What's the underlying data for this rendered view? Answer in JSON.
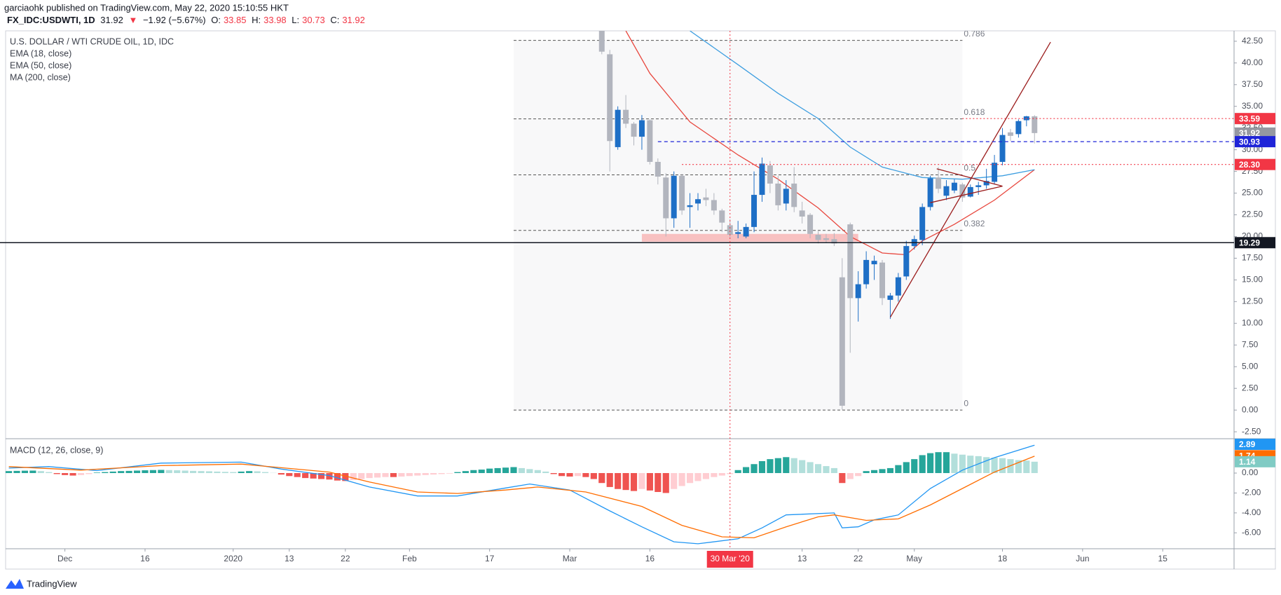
{
  "header": {
    "author_line": "garciaohk published on TradingView.com, May 22, 2020 15:10:55 HKT",
    "symbol": "FX_IDC:USDWTI, 1D",
    "last": "31.92",
    "arrow": "▼",
    "change": "−1.92 (−5.67%)",
    "o_label": "O:",
    "o": "33.85",
    "h_label": "H:",
    "h": "33.98",
    "l_label": "L:",
    "l": "30.73",
    "c_label": "C:",
    "c": "31.92"
  },
  "footer": {
    "brand": "TradingView"
  },
  "chart_data": [
    {
      "type": "candlestick",
      "title": "U.S. DOLLAR / WTI CRUDE OIL, 1D, IDC",
      "legend": [
        "EMA (18, close)",
        "EMA (50, close)",
        "MA (200, close)"
      ],
      "xlim": [
        -70.4,
        82.9
      ],
      "ylim": [
        -3.3,
        43.7
      ],
      "xticks": [
        {
          "value": -63,
          "label": "Dec"
        },
        {
          "value": -53,
          "label": "16"
        },
        {
          "value": -42,
          "label": "2020"
        },
        {
          "value": -35,
          "label": "13"
        },
        {
          "value": -28,
          "label": "22"
        },
        {
          "value": -20,
          "label": "Feb"
        },
        {
          "value": -10,
          "label": "17"
        },
        {
          "value": 0,
          "label": "Mar"
        },
        {
          "value": 10,
          "label": "16"
        },
        {
          "value": 29,
          "label": "13"
        },
        {
          "value": 36,
          "label": "22"
        },
        {
          "value": 43,
          "label": "May"
        },
        {
          "value": 54,
          "label": "18"
        },
        {
          "value": 64,
          "label": "Jun"
        },
        {
          "value": 74,
          "label": "15"
        }
      ],
      "yticks": [
        {
          "value": 42.5,
          "label": "42.50"
        },
        {
          "value": 40,
          "label": "40.00"
        },
        {
          "value": 37.5,
          "label": "37.50"
        },
        {
          "value": 35,
          "label": "35.00"
        },
        {
          "value": 32.5,
          "label": "32.50"
        },
        {
          "value": 30,
          "label": "30.00"
        },
        {
          "value": 27.5,
          "label": "27.50"
        },
        {
          "value": 25,
          "label": "25.00"
        },
        {
          "value": 22.5,
          "label": "22.50"
        },
        {
          "value": 20,
          "label": "20.00"
        },
        {
          "value": 17.5,
          "label": "17.50"
        },
        {
          "value": 15,
          "label": "15.00"
        },
        {
          "value": 12.5,
          "label": "12.50"
        },
        {
          "value": 10,
          "label": "10.00"
        },
        {
          "value": 7.5,
          "label": "7.50"
        },
        {
          "value": 5,
          "label": "5.00"
        },
        {
          "value": 2.5,
          "label": "2.50"
        },
        {
          "value": 0,
          "label": "0.00"
        },
        {
          "value": -2.5,
          "label": "-2.50"
        }
      ],
      "up_color": "#1e6fc6",
      "down_color": "#b2b5be",
      "x": [
        4,
        5,
        6,
        7,
        8,
        9,
        10,
        11,
        12,
        13,
        14,
        15,
        16,
        17,
        18,
        19,
        20,
        21,
        22,
        23,
        24,
        25,
        26,
        27,
        28,
        29,
        30,
        31,
        32,
        33,
        34,
        35,
        36,
        37,
        38,
        39,
        40,
        41,
        42,
        43,
        44,
        45,
        46,
        47,
        48,
        49,
        50,
        51,
        52,
        53,
        54,
        55,
        56,
        57,
        58
      ],
      "open": [
        46,
        41,
        30.3,
        34.6,
        33,
        31.5,
        33.4,
        28.6,
        26.8,
        22.1,
        27,
        23.4,
        23.8,
        24.5,
        24.2,
        23,
        21.3,
        20.3,
        20,
        21.1,
        24.8,
        28.2,
        26.1,
        23.8,
        26.1,
        23,
        22.5,
        20.2,
        19.8,
        19.7,
        15.3,
        21.4,
        12.9,
        14.5,
        16.8,
        17,
        12.7,
        13.2,
        15.4,
        18.9,
        19.6,
        23.4,
        26.8,
        24.7,
        25.3,
        26,
        24.6,
        25.7,
        25.9,
        26.3,
        28.6,
        32,
        31.8,
        33.4,
        33.85
      ],
      "high": [
        46.5,
        41.5,
        35,
        36.3,
        33.2,
        34,
        33.5,
        29,
        27.3,
        27.5,
        27.2,
        25,
        25,
        25.5,
        25,
        23.2,
        22,
        21.8,
        21.5,
        27.5,
        29.1,
        28.7,
        27,
        26.5,
        28,
        24,
        22.7,
        20.6,
        20.3,
        20.4,
        17.5,
        21.6,
        16,
        18.3,
        17.8,
        17.3,
        13.5,
        15.8,
        19.5,
        20.1,
        23.8,
        27,
        28,
        26.5,
        26.6,
        26.2,
        26,
        26.3,
        27.8,
        29.4,
        32.5,
        32.4,
        33.5,
        33.9,
        33.98
      ],
      "low": [
        41,
        27.5,
        30,
        32.5,
        30.5,
        30,
        28.3,
        26,
        20,
        21,
        22.5,
        21,
        23,
        23.5,
        22.5,
        20.5,
        19.8,
        19.8,
        19.8,
        20.5,
        24,
        25,
        23,
        23,
        22.8,
        21.5,
        19.8,
        19.2,
        19.3,
        18.9,
        0.05,
        6.6,
        10.2,
        14,
        15,
        12.1,
        10.5,
        12.5,
        15,
        18.5,
        19,
        23,
        25,
        24.2,
        25,
        24,
        24.5,
        24.8,
        25.5,
        26,
        28.2,
        31,
        31.4,
        32.7,
        30.73
      ],
      "close": [
        41.3,
        31,
        34.6,
        33,
        31.5,
        33.4,
        28.6,
        26.9,
        22.1,
        27,
        23,
        23.6,
        24.3,
        24.2,
        23,
        21.6,
        20.2,
        20.5,
        21.1,
        24.8,
        28.4,
        26.1,
        23.6,
        25.5,
        23.4,
        22.3,
        20.3,
        19.6,
        19.6,
        19.2,
        0.5,
        12.9,
        14.5,
        17.3,
        17.2,
        12.9,
        13.2,
        15.3,
        18.9,
        19.7,
        23.4,
        26.7,
        25.5,
        25.8,
        26.2,
        24.5,
        25.7,
        25.9,
        26.4,
        28.5,
        31.7,
        31.6,
        33.3,
        33.85,
        31.92
      ],
      "series": [
        {
          "color": "#e8473e",
          "x": [
            7,
            10,
            15,
            21,
            26,
            31,
            35,
            39,
            42,
            44,
            48,
            53,
            58
          ],
          "values": [
            43.7,
            38.8,
            33.2,
            29.4,
            26.6,
            23.3,
            20,
            18.1,
            17.9,
            19.5,
            21.4,
            24.2,
            27.7
          ]
        },
        {
          "color": "#3d9ee0",
          "x": [
            15,
            21,
            26,
            31,
            35,
            39,
            44,
            49,
            54,
            58
          ],
          "values": [
            43.7,
            39.8,
            36.5,
            33.6,
            30.3,
            28,
            26.8,
            26.6,
            27,
            27.7
          ]
        }
      ],
      "fib": {
        "ratios": [
          0.786,
          0.618,
          0.5,
          0.382,
          0
        ],
        "prices": [
          42.6,
          33.55,
          27.1,
          20.7,
          0
        ],
        "x": [
          -7,
          49
        ]
      },
      "hlines": [
        {
          "value": 33.59,
          "color": "#f23645",
          "style": "dotted",
          "from": 49
        },
        {
          "value": 30.93,
          "color": "#1f24d8",
          "style": "dashed",
          "from": 11
        },
        {
          "value": 28.3,
          "color": "#f23645",
          "style": "dotted",
          "from": 14
        },
        {
          "value": 19.29,
          "color": "#131722",
          "style": "solid"
        }
      ],
      "price_labels": [
        {
          "value": 33.59,
          "color": "#f23645"
        },
        {
          "value": 31.92,
          "color": "#9598a1"
        },
        {
          "value": 30.93,
          "color": "#1f24d8"
        },
        {
          "value": 28.3,
          "label": "28.30",
          "color": "#f23645"
        },
        {
          "value": 19.29,
          "color": "#131722"
        }
      ],
      "zone": {
        "x": [
          9,
          36
        ],
        "y": [
          19.4,
          20.3
        ],
        "color": "#f7b3b3"
      },
      "trendlines": {
        "color": "#9b1c1c",
        "lines": [
          [
            [
              40,
              10.7
            ],
            [
              60,
              42.4
            ]
          ],
          [
            [
              45.8,
              27.8
            ],
            [
              54,
              25.8
            ]
          ],
          [
            [
              45,
              23.9
            ],
            [
              54,
              25.8
            ]
          ]
        ]
      },
      "crosshair": {
        "x": 20,
        "label": "30 Mar '20",
        "color": "#f23645"
      }
    },
    {
      "type": "macd",
      "title": "MACD (12, 26, close, 9)",
      "xlim": [
        -70.4,
        82.9
      ],
      "ylim": [
        -7.6,
        3.45
      ],
      "yticks": [
        {
          "value": 0,
          "label": "0.00"
        },
        {
          "value": -2,
          "label": "-2.00"
        },
        {
          "value": -4,
          "label": "-4.00"
        },
        {
          "value": -6,
          "label": "-6.00"
        }
      ],
      "colors": {
        "pos_up": "#26a69a",
        "pos_down": "#b2dfdb",
        "neg_down": "#ef5350",
        "neg_up": "#ffcdd2"
      },
      "histogram": {
        "x": [
          -70,
          -69,
          -68,
          -67,
          -66,
          -65,
          -64,
          -63,
          -62,
          -61,
          -60,
          -59,
          -58,
          -57,
          -56,
          -55,
          -54,
          -53,
          -52,
          -51,
          -50,
          -49,
          -48,
          -47,
          -46,
          -45,
          -44,
          -43,
          -42,
          -41,
          -40,
          -39,
          -38,
          -37,
          -36,
          -35,
          -34,
          -33,
          -32,
          -31,
          -30,
          -29,
          -28,
          -27,
          -26,
          -25,
          -24,
          -23,
          -22,
          -21,
          -20,
          -19,
          -18,
          -17,
          -16,
          -15,
          -14,
          -13,
          -12,
          -11,
          -10,
          -9,
          -8,
          -7,
          -6,
          -5,
          -4,
          -3,
          -2,
          -1,
          0,
          1,
          2,
          3,
          4,
          5,
          6,
          7,
          8,
          9,
          10,
          11,
          12,
          13,
          14,
          15,
          16,
          17,
          18,
          19,
          20,
          21,
          22,
          23,
          24,
          25,
          26,
          27,
          28,
          29,
          30,
          31,
          32,
          33,
          34,
          35,
          36,
          37,
          38,
          39,
          40,
          41,
          42,
          43,
          44,
          45,
          46,
          47,
          48,
          49,
          50,
          51,
          52,
          53,
          54,
          55,
          56,
          57,
          58
        ],
        "values": [
          0.2,
          0.22,
          0.24,
          0.25,
          0.2,
          0.1,
          -0.1,
          -0.2,
          -0.25,
          -0.2,
          -0.1,
          0.05,
          0.1,
          0.15,
          0.2,
          0.22,
          0.25,
          0.28,
          0.3,
          0.32,
          0.3,
          0.28,
          0.25,
          0.22,
          0.2,
          0.18,
          0.15,
          0.12,
          0.1,
          0.15,
          0.2,
          0.18,
          0.1,
          0.02,
          -0.15,
          -0.3,
          -0.4,
          -0.5,
          -0.55,
          -0.6,
          -0.65,
          -0.75,
          -0.8,
          -0.7,
          -0.6,
          -0.5,
          -0.45,
          -0.4,
          -0.4,
          -0.35,
          -0.3,
          -0.25,
          -0.2,
          -0.15,
          -0.1,
          -0.05,
          0.1,
          0.2,
          0.3,
          0.35,
          0.45,
          0.5,
          0.55,
          0.6,
          0.5,
          0.4,
          0.3,
          0.15,
          -0.1,
          -0.3,
          -0.35,
          -0.3,
          -0.4,
          -0.6,
          -1.0,
          -1.4,
          -1.6,
          -1.7,
          -1.8,
          -1.6,
          -1.75,
          -1.9,
          -2.0,
          -1.6,
          -1.3,
          -1.0,
          -0.8,
          -0.6,
          -0.4,
          -0.25,
          -0.1,
          0.3,
          0.6,
          0.9,
          1.2,
          1.4,
          1.5,
          1.6,
          1.5,
          1.3,
          1.1,
          0.9,
          0.7,
          0.5,
          -1.0,
          -0.6,
          -0.3,
          0.2,
          0.3,
          0.4,
          0.5,
          0.8,
          1.1,
          1.4,
          1.8,
          2.0,
          2.1,
          2.1,
          1.95,
          1.85,
          1.75,
          1.7,
          1.6,
          1.55,
          1.5,
          1.4,
          1.3,
          1.25,
          1.14
        ]
      },
      "series": [
        {
          "color": "#2196f3",
          "x": [
            -70,
            -65,
            -59,
            -51,
            -41,
            -36,
            -30,
            -25,
            -19,
            -14,
            -8,
            -5,
            0,
            5,
            9,
            13,
            16,
            21,
            24,
            27,
            33,
            34,
            36,
            38,
            41,
            45,
            49,
            53,
            58
          ],
          "values": [
            0.5,
            0.65,
            0.25,
            1,
            1.1,
            0.4,
            -0.25,
            -1.4,
            -2.3,
            -2.3,
            -1.5,
            -1.1,
            -1.7,
            -3.8,
            -5.4,
            -6.9,
            -7.1,
            -6.6,
            -5.5,
            -4.2,
            -4,
            -5.5,
            -5.4,
            -4.7,
            -4.2,
            -1.55,
            0.3,
            1.55,
            2.8
          ]
        },
        {
          "color": "#ff6d00",
          "x": [
            -70,
            -61,
            -51,
            -41,
            -30,
            -25,
            -19,
            -14,
            -8,
            -4,
            2,
            9,
            14,
            19,
            23,
            27,
            31,
            33,
            37,
            41,
            45,
            49,
            53,
            58
          ],
          "values": [
            0.65,
            0.3,
            0.75,
            0.9,
            0.1,
            -0.9,
            -1.9,
            -2.05,
            -1.7,
            -1.4,
            -1.9,
            -3.35,
            -5.25,
            -6.4,
            -6.5,
            -5.4,
            -4.4,
            -4.2,
            -4.75,
            -4.6,
            -3.2,
            -1.55,
            0.1,
            1.7
          ]
        }
      ],
      "price_labels": [
        {
          "value": 2.89,
          "color": "#2196f3"
        },
        {
          "value": 1.74,
          "color": "#ff6d00"
        },
        {
          "value": 1.14,
          "color": "#80cbc4"
        }
      ]
    }
  ]
}
